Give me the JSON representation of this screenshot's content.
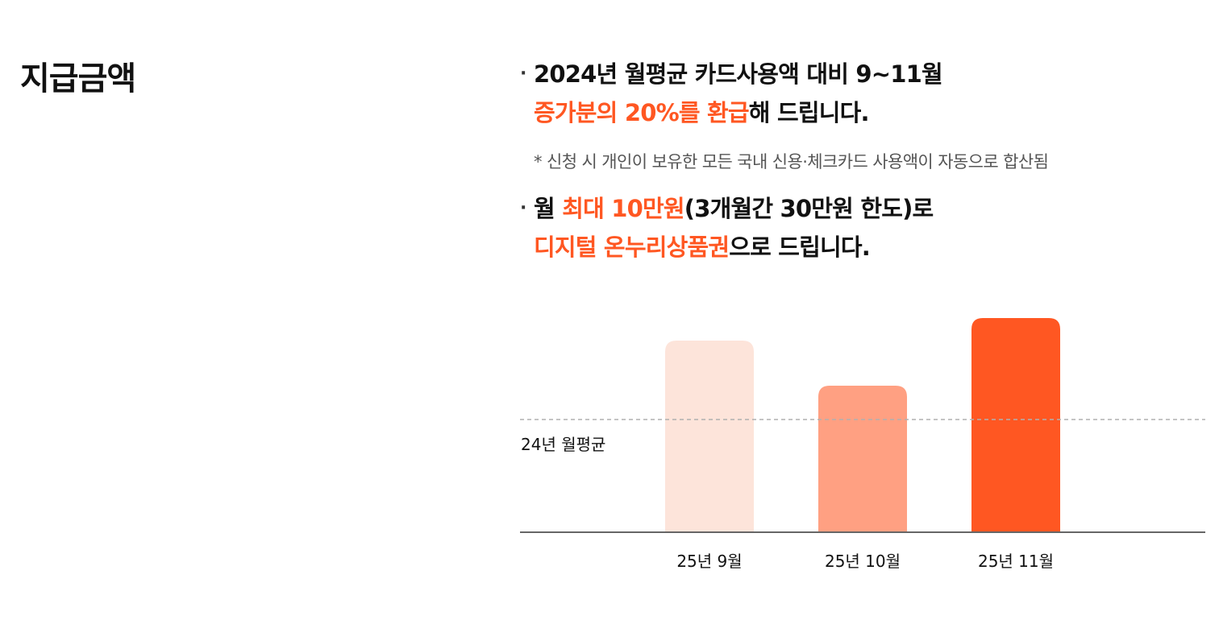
{
  "section": {
    "title": "지급금액"
  },
  "bullet1": {
    "line1": "2024년 월평균 카드사용액 대비 9~11월",
    "line2_hl": "증가분의 20%를 환급",
    "line2_rest": "해 드립니다."
  },
  "note": "* 신청 시 개인이 보유한 모든 국내 신용·체크카드 사용액이 자동으로 합산됨",
  "bullet2": {
    "p1": "월 ",
    "p1_hl": "최대 10만원",
    "p1_rest": "(3개월간 30만원 한도)로",
    "p2_hl": "디지털 온누리상품권",
    "p2_rest": "으로 드립니다."
  },
  "chart_data": {
    "type": "bar",
    "categories": [
      "25년 9월",
      "25년 10월",
      "25년 11월"
    ],
    "values": [
      1.7,
      1.3,
      1.9
    ],
    "ylim": [
      0,
      2
    ],
    "reference_line": {
      "label": "24년 월평균",
      "value": 1.0
    },
    "bar_colors": [
      "#fde4da",
      "#ffa082",
      "#ff5722"
    ],
    "grid": false
  }
}
